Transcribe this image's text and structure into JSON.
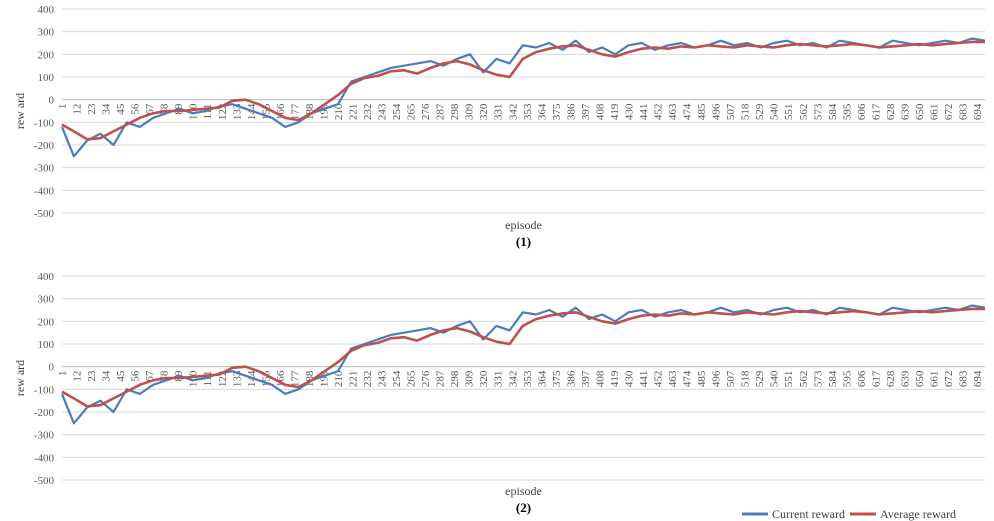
{
  "chart_data": [
    {
      "type": "line",
      "panel_label": "(1)",
      "xlabel": "episode",
      "ylabel": "rew ard",
      "ylim": [
        -500,
        400
      ],
      "yticks": [
        -500,
        -400,
        -300,
        -200,
        -100,
        0,
        100,
        200,
        300,
        400
      ],
      "x_tick_labels": [
        "1",
        "12",
        "23",
        "34",
        "45",
        "56",
        "67",
        "78",
        "89",
        "100",
        "111",
        "122",
        "133",
        "144",
        "155",
        "166",
        "177",
        "188",
        "199",
        "210",
        "221",
        "232",
        "243",
        "254",
        "265",
        "276",
        "287",
        "298",
        "309",
        "320",
        "331",
        "342",
        "353",
        "364",
        "375",
        "386",
        "397",
        "408",
        "419",
        "430",
        "441",
        "452",
        "463",
        "474",
        "485",
        "496",
        "507",
        "518",
        "529",
        "540",
        "551",
        "562",
        "573",
        "584",
        "595",
        "606",
        "617",
        "628",
        "639",
        "650",
        "661",
        "672",
        "683",
        "694"
      ],
      "grid": true,
      "series": [
        {
          "name": "Current reward",
          "color": "#4a7ebb",
          "x": [
            1,
            10,
            20,
            30,
            40,
            50,
            60,
            70,
            80,
            90,
            100,
            110,
            120,
            130,
            140,
            150,
            160,
            170,
            180,
            190,
            200,
            210,
            220,
            230,
            240,
            250,
            260,
            270,
            280,
            290,
            300,
            310,
            320,
            330,
            340,
            350,
            360,
            370,
            380,
            390,
            400,
            410,
            420,
            430,
            440,
            450,
            460,
            470,
            480,
            490,
            500,
            510,
            520,
            530,
            540,
            550,
            560,
            570,
            580,
            590,
            600,
            610,
            620,
            630,
            640,
            650,
            660,
            670,
            680,
            690,
            700
          ],
          "values": [
            -120,
            -250,
            -180,
            -150,
            -200,
            -100,
            -120,
            -80,
            -60,
            -40,
            -60,
            -50,
            -30,
            -20,
            -40,
            -60,
            -80,
            -120,
            -100,
            -60,
            -40,
            -20,
            80,
            100,
            120,
            140,
            150,
            160,
            170,
            150,
            180,
            200,
            120,
            180,
            160,
            240,
            230,
            250,
            220,
            260,
            210,
            230,
            200,
            240,
            250,
            220,
            240,
            250,
            230,
            240,
            260,
            240,
            250,
            230,
            250,
            260,
            240,
            250,
            230,
            260,
            250,
            240,
            230,
            260,
            250,
            240,
            250,
            260,
            250,
            270,
            260
          ]
        },
        {
          "name": "Average reward",
          "color": "#c0504d",
          "x": [
            1,
            10,
            20,
            30,
            40,
            50,
            60,
            70,
            80,
            90,
            100,
            110,
            120,
            130,
            140,
            150,
            160,
            170,
            180,
            190,
            200,
            210,
            220,
            230,
            240,
            250,
            260,
            270,
            280,
            290,
            300,
            310,
            320,
            330,
            340,
            350,
            360,
            370,
            380,
            390,
            400,
            410,
            420,
            430,
            440,
            450,
            460,
            470,
            480,
            490,
            500,
            510,
            520,
            530,
            540,
            550,
            560,
            570,
            580,
            590,
            600,
            610,
            620,
            630,
            640,
            650,
            660,
            670,
            680,
            690,
            700
          ],
          "values": [
            -110,
            -140,
            -175,
            -170,
            -140,
            -110,
            -80,
            -60,
            -50,
            -50,
            -45,
            -40,
            -35,
            -5,
            0,
            -20,
            -50,
            -80,
            -90,
            -60,
            -20,
            20,
            70,
            95,
            105,
            125,
            130,
            115,
            140,
            160,
            170,
            155,
            130,
            110,
            100,
            180,
            210,
            225,
            235,
            240,
            220,
            200,
            190,
            210,
            225,
            230,
            225,
            235,
            230,
            240,
            235,
            230,
            240,
            235,
            230,
            240,
            245,
            240,
            235,
            240,
            245,
            240,
            230,
            235,
            240,
            245,
            240,
            245,
            250,
            255,
            255
          ]
        }
      ]
    },
    {
      "type": "line",
      "panel_label": "(2)",
      "xlabel": "episode",
      "ylabel": "rew ard",
      "ylim": [
        -500,
        400
      ],
      "yticks": [
        -500,
        -400,
        -300,
        -200,
        -100,
        0,
        100,
        200,
        300,
        400
      ],
      "x_tick_labels": [
        "1",
        "12",
        "23",
        "34",
        "45",
        "56",
        "67",
        "78",
        "89",
        "100",
        "111",
        "122",
        "133",
        "144",
        "155",
        "166",
        "177",
        "188",
        "199",
        "210",
        "221",
        "232",
        "243",
        "254",
        "265",
        "276",
        "287",
        "298",
        "309",
        "320",
        "331",
        "342",
        "353",
        "364",
        "375",
        "386",
        "397",
        "408",
        "419",
        "430",
        "441",
        "452",
        "463",
        "474",
        "485",
        "496",
        "507",
        "518",
        "529",
        "540",
        "551",
        "562",
        "573",
        "584",
        "595",
        "606",
        "617",
        "628",
        "639",
        "650",
        "661",
        "672",
        "683",
        "694"
      ],
      "grid": true,
      "series": [
        {
          "name": "Current reward",
          "color": "#4a7ebb",
          "x": [
            1,
            10,
            20,
            30,
            40,
            50,
            60,
            70,
            80,
            90,
            100,
            110,
            120,
            130,
            140,
            150,
            160,
            170,
            180,
            190,
            200,
            210,
            220,
            230,
            240,
            250,
            260,
            270,
            280,
            290,
            300,
            310,
            320,
            330,
            340,
            350,
            360,
            370,
            380,
            390,
            400,
            410,
            420,
            430,
            440,
            450,
            460,
            470,
            480,
            490,
            500,
            510,
            520,
            530,
            540,
            550,
            560,
            570,
            580,
            590,
            600,
            610,
            620,
            630,
            640,
            650,
            660,
            670,
            680,
            690,
            700
          ],
          "values": [
            -120,
            -250,
            -180,
            -150,
            -200,
            -100,
            -120,
            -80,
            -60,
            -40,
            -60,
            -50,
            -30,
            -20,
            -40,
            -60,
            -80,
            -120,
            -100,
            -60,
            -40,
            -20,
            80,
            100,
            120,
            140,
            150,
            160,
            170,
            150,
            180,
            200,
            120,
            180,
            160,
            240,
            230,
            250,
            220,
            260,
            210,
            230,
            200,
            240,
            250,
            220,
            240,
            250,
            230,
            240,
            260,
            240,
            250,
            230,
            250,
            260,
            240,
            250,
            230,
            260,
            250,
            240,
            230,
            260,
            250,
            240,
            250,
            260,
            250,
            270,
            260
          ]
        },
        {
          "name": "Average reward",
          "color": "#c0504d",
          "x": [
            1,
            10,
            20,
            30,
            40,
            50,
            60,
            70,
            80,
            90,
            100,
            110,
            120,
            130,
            140,
            150,
            160,
            170,
            180,
            190,
            200,
            210,
            220,
            230,
            240,
            250,
            260,
            270,
            280,
            290,
            300,
            310,
            320,
            330,
            340,
            350,
            360,
            370,
            380,
            390,
            400,
            410,
            420,
            430,
            440,
            450,
            460,
            470,
            480,
            490,
            500,
            510,
            520,
            530,
            540,
            550,
            560,
            570,
            580,
            590,
            600,
            610,
            620,
            630,
            640,
            650,
            660,
            670,
            680,
            690,
            700
          ],
          "values": [
            -110,
            -140,
            -175,
            -170,
            -140,
            -110,
            -80,
            -60,
            -50,
            -50,
            -45,
            -40,
            -35,
            -5,
            0,
            -20,
            -50,
            -80,
            -90,
            -60,
            -20,
            20,
            70,
            95,
            105,
            125,
            130,
            115,
            140,
            160,
            170,
            155,
            130,
            110,
            100,
            180,
            210,
            225,
            235,
            240,
            220,
            200,
            190,
            210,
            225,
            230,
            225,
            235,
            230,
            240,
            235,
            230,
            240,
            235,
            230,
            240,
            245,
            240,
            235,
            240,
            245,
            240,
            230,
            235,
            240,
            245,
            240,
            245,
            250,
            255,
            255
          ]
        }
      ]
    }
  ],
  "legend": {
    "position": "bottom-right",
    "items": [
      {
        "label": "Current reward",
        "color": "#4a7ebb"
      },
      {
        "label": "Average reward",
        "color": "#c0504d"
      }
    ]
  }
}
